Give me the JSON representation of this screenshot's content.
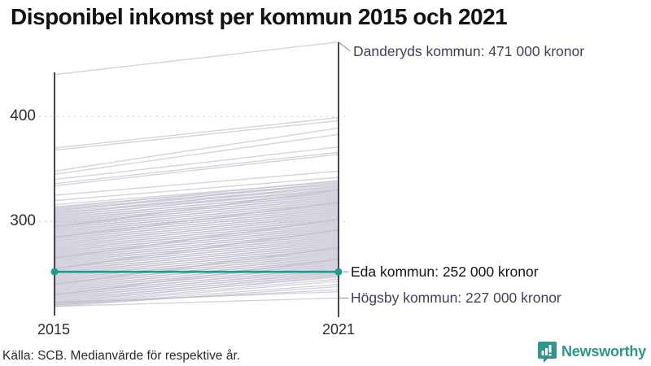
{
  "title": "Disponibel inkomst per kommun 2015 och 2021",
  "source": "Källa: SCB. Medianvärde för respektive år.",
  "brand": {
    "name": "Newsworthy",
    "color": "#2f948a",
    "icon": "bar-chart-speech-bubble-icon"
  },
  "colors": {
    "highlight": "#1f9a8b",
    "background_line": "#b9b6c6",
    "axis": "#1a1a1a",
    "gridline": "#d9d8de",
    "leader": "#9b99a8"
  },
  "chart_data": {
    "type": "line",
    "subtype": "slope-chart",
    "title": "Disponibel inkomst per kommun 2015 och 2021",
    "x": [
      2015,
      2021
    ],
    "x_labels": [
      "2015",
      "2021"
    ],
    "y_tick_labels": [
      "400",
      "300"
    ],
    "y_ticks": [
      400,
      300
    ],
    "ylim": [
      209,
      480
    ],
    "unit": "tusen kronor",
    "grid": "dotted-horizontal",
    "annotations": [
      {
        "text": "Danderyds kommun: 471 000 kronor",
        "year": 2021,
        "value": 471
      },
      {
        "text": "Eda kommun: 252 000 kronor",
        "year": 2021,
        "value": 252
      },
      {
        "text": "Högsby kommun: 227 000 kronor",
        "year": 2021,
        "value": 227
      }
    ],
    "highlight_series": {
      "name": "Eda kommun",
      "values": [
        252,
        252
      ]
    },
    "labeled_series": [
      {
        "name": "Danderyds kommun",
        "values": [
          440,
          471
        ]
      },
      {
        "name": "Högsby kommun",
        "values": [
          219,
          227
        ]
      }
    ],
    "background_series": [
      [
        440,
        471
      ],
      [
        370,
        399
      ],
      [
        368,
        396
      ],
      [
        348,
        389
      ],
      [
        345,
        383
      ],
      [
        340,
        371
      ],
      [
        336,
        366
      ],
      [
        334,
        364
      ],
      [
        325,
        348
      ],
      [
        320,
        342
      ],
      [
        316,
        338
      ],
      [
        314,
        336
      ],
      [
        313,
        339
      ],
      [
        312,
        335
      ],
      [
        311,
        333
      ],
      [
        310,
        337
      ],
      [
        309,
        332
      ],
      [
        308,
        330
      ],
      [
        307,
        334
      ],
      [
        306,
        329
      ],
      [
        305,
        331
      ],
      [
        304,
        327
      ],
      [
        303,
        328
      ],
      [
        302,
        325
      ],
      [
        301,
        326
      ],
      [
        300,
        323
      ],
      [
        299,
        324
      ],
      [
        298,
        321
      ],
      [
        297,
        322
      ],
      [
        296,
        319
      ],
      [
        295,
        330
      ],
      [
        295,
        320
      ],
      [
        294,
        317
      ],
      [
        293,
        318
      ],
      [
        292,
        315
      ],
      [
        291,
        316
      ],
      [
        290,
        313
      ],
      [
        289,
        314
      ],
      [
        288,
        311
      ],
      [
        287,
        312
      ],
      [
        286,
        309
      ],
      [
        285,
        318
      ],
      [
        285,
        310
      ],
      [
        284,
        307
      ],
      [
        283,
        308
      ],
      [
        282,
        305
      ],
      [
        281,
        306
      ],
      [
        280,
        303
      ],
      [
        279,
        304
      ],
      [
        278,
        301
      ],
      [
        277,
        302
      ],
      [
        276,
        299
      ],
      [
        275,
        300
      ],
      [
        274,
        297
      ],
      [
        273,
        298
      ],
      [
        272,
        295
      ],
      [
        271,
        296
      ],
      [
        270,
        293
      ],
      [
        269,
        294
      ],
      [
        268,
        291
      ],
      [
        267,
        292
      ],
      [
        266,
        289
      ],
      [
        265,
        302
      ],
      [
        265,
        290
      ],
      [
        264,
        287
      ],
      [
        263,
        288
      ],
      [
        262,
        285
      ],
      [
        261,
        286
      ],
      [
        260,
        283
      ],
      [
        259,
        284
      ],
      [
        258,
        281
      ],
      [
        257,
        282
      ],
      [
        256,
        279
      ],
      [
        255,
        292
      ],
      [
        255,
        280
      ],
      [
        254,
        277
      ],
      [
        253,
        278
      ],
      [
        252,
        275
      ],
      [
        251,
        276
      ],
      [
        250,
        273
      ],
      [
        249,
        274
      ],
      [
        248,
        271
      ],
      [
        247,
        272
      ],
      [
        246,
        269
      ],
      [
        245,
        270
      ],
      [
        244,
        267
      ],
      [
        243,
        268
      ],
      [
        242,
        265
      ],
      [
        241,
        266
      ],
      [
        240,
        275
      ],
      [
        240,
        263
      ],
      [
        239,
        264
      ],
      [
        238,
        261
      ],
      [
        237,
        262
      ],
      [
        236,
        259
      ],
      [
        235,
        260
      ],
      [
        234,
        257
      ],
      [
        233,
        258
      ],
      [
        232,
        255
      ],
      [
        231,
        256
      ],
      [
        230,
        264
      ],
      [
        230,
        253
      ],
      [
        229,
        254
      ],
      [
        228,
        251
      ],
      [
        227,
        252
      ],
      [
        226,
        249
      ],
      [
        225,
        250
      ],
      [
        224,
        247
      ],
      [
        223,
        248
      ],
      [
        222,
        245
      ],
      [
        221,
        243
      ],
      [
        220,
        240
      ],
      [
        219,
        238
      ],
      [
        221,
        235
      ],
      [
        223,
        233
      ],
      [
        219,
        227
      ]
    ]
  }
}
